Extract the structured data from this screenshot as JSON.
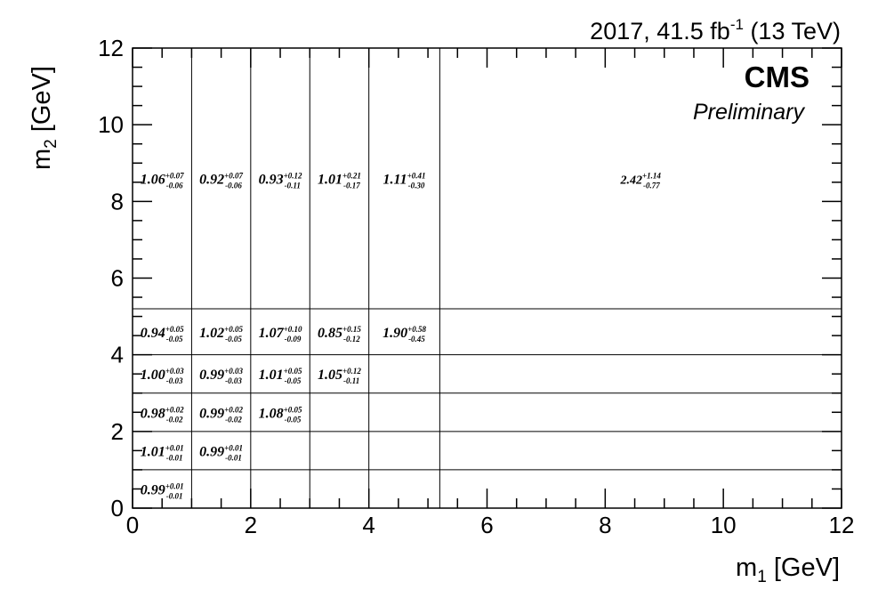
{
  "header": {
    "lumi_prefix": "2017, 41.5 fb",
    "lumi_exp": "-1",
    "lumi_suffix": " (13 TeV)",
    "cms_label": "CMS",
    "preliminary_label": "Preliminary"
  },
  "chart_data": {
    "type": "heatmap",
    "x_axis": {
      "label_main": "m",
      "label_sub": "1",
      "label_unit": " [GeV]",
      "range": [
        0,
        12
      ],
      "ticks": [
        "0",
        "2",
        "4",
        "6",
        "8",
        "10",
        "12"
      ],
      "major_step": 2,
      "minor_step": 0.5
    },
    "y_axis": {
      "label_main": "m",
      "label_sub": "2",
      "label_unit": " [GeV]",
      "range": [
        0,
        12
      ],
      "ticks": [
        "0",
        "2",
        "4",
        "6",
        "8",
        "10",
        "12"
      ],
      "major_step": 2,
      "minor_step": 0.5
    },
    "x_bin_edges": [
      0,
      1,
      2,
      3,
      4,
      5.2,
      12
    ],
    "y_bin_edges": [
      0,
      1,
      2,
      3,
      4,
      5.2,
      12
    ],
    "cells": [
      {
        "xbin": 0,
        "ybin": 0,
        "value": "0.99",
        "up": "+0.01",
        "down": "-0.01"
      },
      {
        "xbin": 0,
        "ybin": 1,
        "value": "1.01",
        "up": "+0.01",
        "down": "-0.01"
      },
      {
        "xbin": 1,
        "ybin": 1,
        "value": "0.99",
        "up": "+0.01",
        "down": "-0.01"
      },
      {
        "xbin": 0,
        "ybin": 2,
        "value": "0.98",
        "up": "+0.02",
        "down": "-0.02"
      },
      {
        "xbin": 1,
        "ybin": 2,
        "value": "0.99",
        "up": "+0.02",
        "down": "-0.02"
      },
      {
        "xbin": 2,
        "ybin": 2,
        "value": "1.08",
        "up": "+0.05",
        "down": "-0.05"
      },
      {
        "xbin": 0,
        "ybin": 3,
        "value": "1.00",
        "up": "+0.03",
        "down": "-0.03"
      },
      {
        "xbin": 1,
        "ybin": 3,
        "value": "0.99",
        "up": "+0.03",
        "down": "-0.03"
      },
      {
        "xbin": 2,
        "ybin": 3,
        "value": "1.01",
        "up": "+0.05",
        "down": "-0.05"
      },
      {
        "xbin": 3,
        "ybin": 3,
        "value": "1.05",
        "up": "+0.12",
        "down": "-0.11"
      },
      {
        "xbin": 0,
        "ybin": 4,
        "value": "0.94",
        "up": "+0.05",
        "down": "-0.05"
      },
      {
        "xbin": 1,
        "ybin": 4,
        "value": "1.02",
        "up": "+0.05",
        "down": "-0.05"
      },
      {
        "xbin": 2,
        "ybin": 4,
        "value": "1.07",
        "up": "+0.10",
        "down": "-0.09"
      },
      {
        "xbin": 3,
        "ybin": 4,
        "value": "0.85",
        "up": "+0.15",
        "down": "-0.12"
      },
      {
        "xbin": 4,
        "ybin": 4,
        "value": "1.90",
        "up": "+0.58",
        "down": "-0.45"
      },
      {
        "xbin": 0,
        "ybin": 5,
        "value": "1.06",
        "up": "+0.07",
        "down": "-0.06"
      },
      {
        "xbin": 1,
        "ybin": 5,
        "value": "0.92",
        "up": "+0.07",
        "down": "-0.06"
      },
      {
        "xbin": 2,
        "ybin": 5,
        "value": "0.93",
        "up": "+0.12",
        "down": "-0.11"
      },
      {
        "xbin": 3,
        "ybin": 5,
        "value": "1.01",
        "up": "+0.21",
        "down": "-0.17"
      },
      {
        "xbin": 4,
        "ybin": 5,
        "value": "1.11",
        "up": "+0.41",
        "down": "-0.30"
      },
      {
        "xbin": 5,
        "ybin": 5,
        "value": "2.42",
        "up": "+1.14",
        "down": "-0.77"
      }
    ],
    "grid_note": "vertical bin lines drawn only in the top row region; horizontal bin lines span full width"
  }
}
